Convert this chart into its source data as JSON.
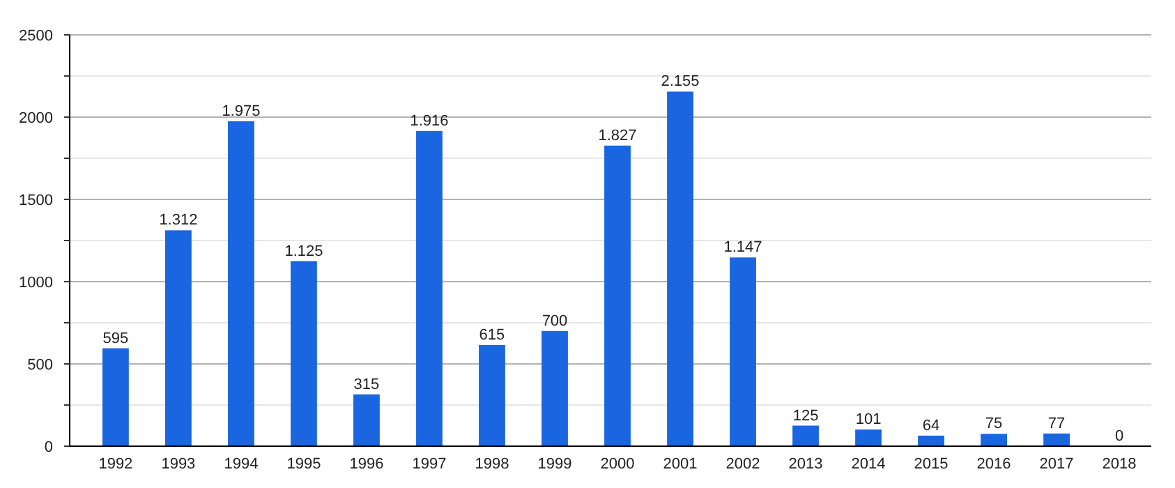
{
  "chart_data": {
    "type": "bar",
    "categories": [
      "1992",
      "1993",
      "1994",
      "1995",
      "1996",
      "1997",
      "1998",
      "1999",
      "2000",
      "2001",
      "2002",
      "2013",
      "2014",
      "2015",
      "2016",
      "2017",
      "2018"
    ],
    "values": [
      595,
      1312,
      1975,
      1125,
      315,
      1916,
      615,
      700,
      1827,
      2155,
      1147,
      125,
      101,
      64,
      75,
      77,
      0
    ],
    "value_labels": [
      "595",
      "1.312",
      "1.975",
      "1.125",
      "315",
      "1.916",
      "615",
      "700",
      "1.827",
      "2.155",
      "1.147",
      "125",
      "101",
      "64",
      "75",
      "77",
      "0"
    ],
    "color": "#1a66e0",
    "ylim": [
      0,
      2500
    ],
    "yticks": [
      0,
      {
        "value": 250,
        "label": null
      },
      500,
      {
        "value": 750,
        "label": null
      },
      1000,
      {
        "value": 1250,
        "label": null
      },
      1500,
      {
        "value": 1750,
        "label": null
      },
      2000,
      {
        "value": 2250,
        "label": null
      },
      2500
    ],
    "grid": true
  }
}
